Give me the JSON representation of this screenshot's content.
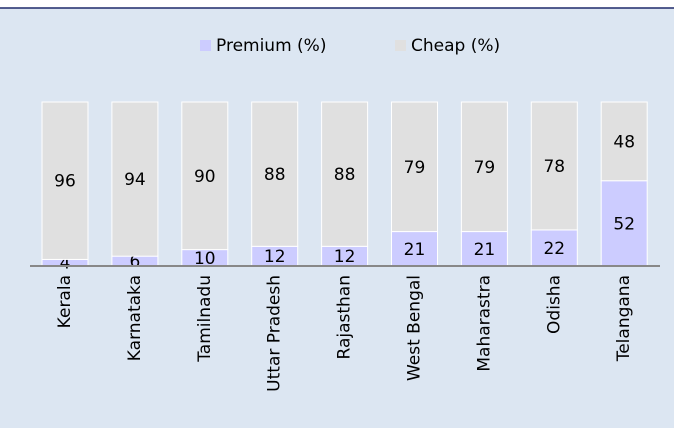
{
  "chart_data": {
    "type": "bar",
    "stacked": true,
    "categories": [
      "Kerala",
      "Karnataka",
      "Tamilnadu",
      "Uttar Pradesh",
      "Rajasthan",
      "West Bengal",
      "Maharastra",
      "Odisha",
      "Telangana"
    ],
    "series": [
      {
        "name": "Premium  (%)",
        "color": "#ccccff",
        "values": [
          4,
          6,
          10,
          12,
          12,
          21,
          21,
          22,
          52
        ]
      },
      {
        "name": "Cheap (%)",
        "color": "#e0e0e0",
        "values": [
          96,
          94,
          90,
          88,
          88,
          79,
          79,
          78,
          48
        ]
      }
    ],
    "ylim": [
      0,
      100
    ],
    "legend": "top"
  }
}
